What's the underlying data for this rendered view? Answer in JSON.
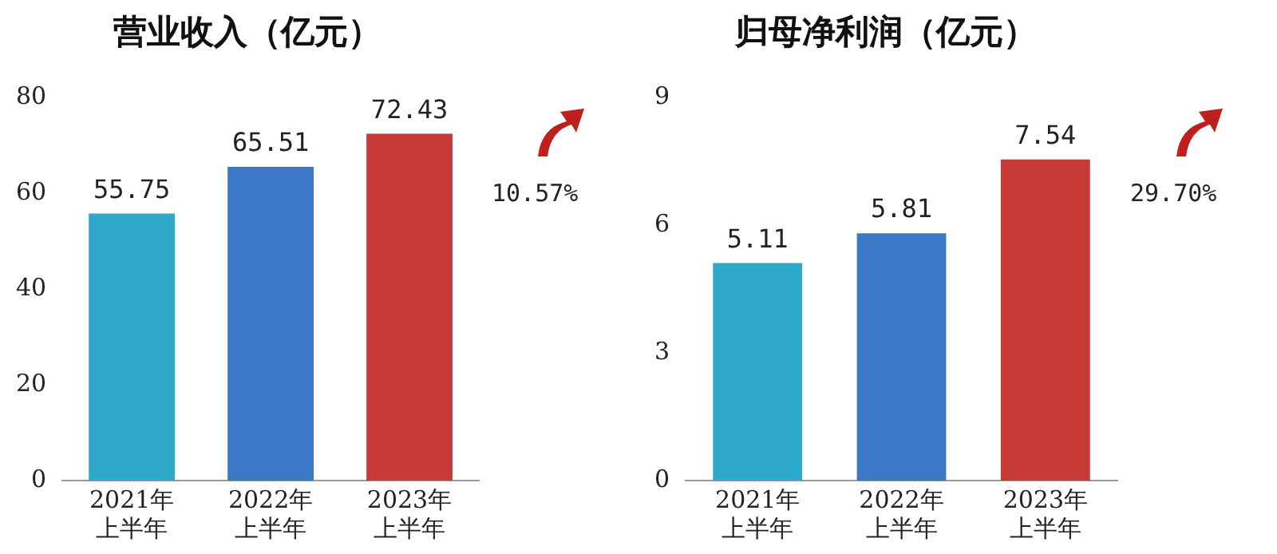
{
  "chart_data": [
    {
      "type": "bar",
      "title": "营业收入（亿元）",
      "categories": [
        "2021年上半年",
        "2022年上半年",
        "2023年上半年"
      ],
      "values": [
        55.75,
        65.51,
        72.43
      ],
      "colors": [
        "#2fa9c9",
        "#3b78c6",
        "#c63b37"
      ],
      "ylim": [
        0,
        80
      ],
      "yticks": [
        0,
        20,
        40,
        60,
        80
      ],
      "grid": false,
      "data_labels": true,
      "annotations": [
        "10.57%"
      ]
    },
    {
      "type": "bar",
      "title": "归母净利润（亿元）",
      "categories": [
        "2021年上半年",
        "2022年上半年",
        "2023年上半年"
      ],
      "values": [
        5.11,
        5.81,
        7.54
      ],
      "colors": [
        "#2fa9c9",
        "#3b78c6",
        "#c63b37"
      ],
      "ylim": [
        0,
        9
      ],
      "yticks": [
        0,
        3,
        6,
        9
      ],
      "grid": false,
      "data_labels": true,
      "annotations": [
        "29.70%"
      ]
    }
  ]
}
